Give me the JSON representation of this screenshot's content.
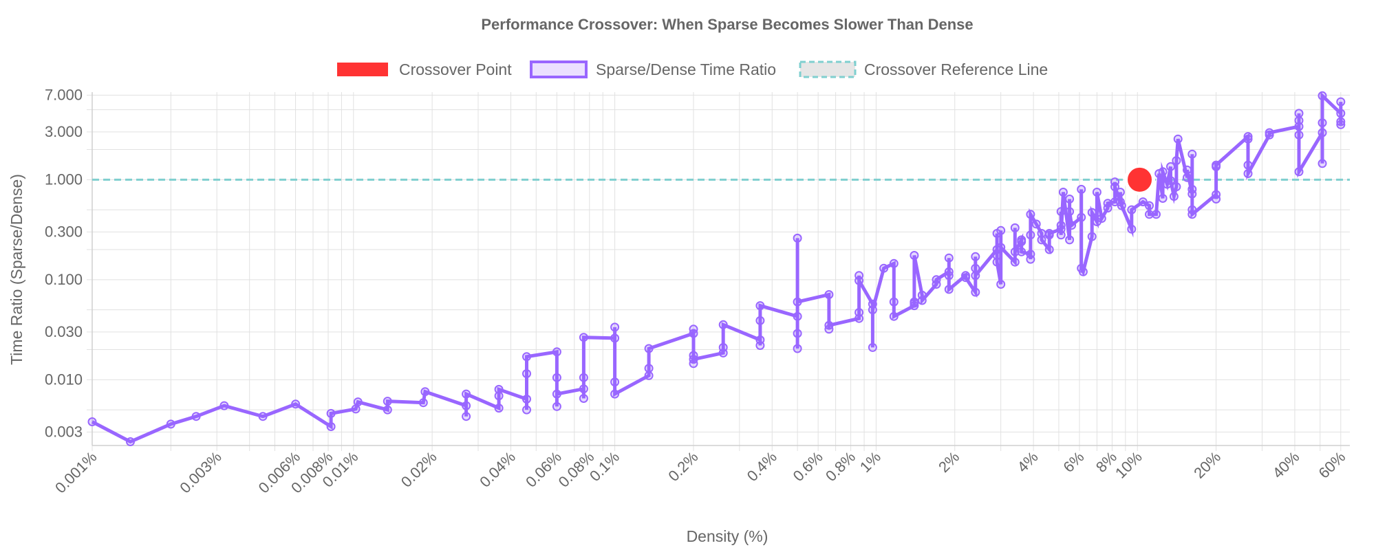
{
  "chart_data": {
    "type": "line",
    "title": "Performance Crossover: When Sparse Becomes Slower Than Dense",
    "xlabel": "Density (%)",
    "ylabel": "Time Ratio (Sparse/Dense)",
    "x_scale": "log",
    "y_scale": "log",
    "xlim": [
      0.001,
      65
    ],
    "ylim": [
      0.0022,
      7.5
    ],
    "grid": true,
    "legend_position": "top",
    "x_ticks": [
      {
        "value": 0.001,
        "label": "0.001%"
      },
      {
        "value": 0.003,
        "label": "0.003%"
      },
      {
        "value": 0.006,
        "label": "0.006%"
      },
      {
        "value": 0.008,
        "label": "0.008%"
      },
      {
        "value": 0.01,
        "label": "0.01%"
      },
      {
        "value": 0.02,
        "label": "0.02%"
      },
      {
        "value": 0.04,
        "label": "0.04%"
      },
      {
        "value": 0.06,
        "label": "0.06%"
      },
      {
        "value": 0.08,
        "label": "0.08%"
      },
      {
        "value": 0.1,
        "label": "0.1%"
      },
      {
        "value": 0.2,
        "label": "0.2%"
      },
      {
        "value": 0.4,
        "label": "0.4%"
      },
      {
        "value": 0.6,
        "label": "0.6%"
      },
      {
        "value": 0.8,
        "label": "0.8%"
      },
      {
        "value": 1,
        "label": "1%"
      },
      {
        "value": 2,
        "label": "2%"
      },
      {
        "value": 4,
        "label": "4%"
      },
      {
        "value": 6,
        "label": "6%"
      },
      {
        "value": 8,
        "label": "8%"
      },
      {
        "value": 10,
        "label": "10%"
      },
      {
        "value": 20,
        "label": "20%"
      },
      {
        "value": 40,
        "label": "40%"
      },
      {
        "value": 60,
        "label": "60%"
      }
    ],
    "y_ticks": [
      {
        "value": 0.003,
        "label": "0.003"
      },
      {
        "value": 0.01,
        "label": "0.010"
      },
      {
        "value": 0.03,
        "label": "0.030"
      },
      {
        "value": 0.1,
        "label": "0.100"
      },
      {
        "value": 0.3,
        "label": "0.300"
      },
      {
        "value": 1,
        "label": "1.000"
      },
      {
        "value": 3,
        "label": "3.000"
      },
      {
        "value": 7,
        "label": "7.000"
      }
    ],
    "legend": [
      {
        "name": "Crossover Point",
        "color": "#ff3333",
        "style": "filled"
      },
      {
        "name": "Sparse/Dense Time Ratio",
        "color": "#9966ff",
        "style": "box"
      },
      {
        "name": "Crossover Reference Line",
        "color": "#7fcfcf",
        "style": "dashed"
      }
    ],
    "series": [
      {
        "name": "Sparse/Dense Time Ratio",
        "color": "#9966ff",
        "points": [
          [
            0.001,
            0.0038
          ],
          [
            0.0014,
            0.0024
          ],
          [
            0.002,
            0.0036
          ],
          [
            0.0025,
            0.0043
          ],
          [
            0.0032,
            0.0055
          ],
          [
            0.0045,
            0.0043
          ],
          [
            0.006,
            0.0057
          ],
          [
            0.0082,
            0.0034
          ],
          [
            0.0082,
            0.0046
          ],
          [
            0.0102,
            0.0051
          ],
          [
            0.0104,
            0.006
          ],
          [
            0.0135,
            0.005
          ],
          [
            0.0135,
            0.0061
          ],
          [
            0.0185,
            0.0059
          ],
          [
            0.0188,
            0.0076
          ],
          [
            0.027,
            0.0055
          ],
          [
            0.027,
            0.0043
          ],
          [
            0.027,
            0.0072
          ],
          [
            0.036,
            0.0052
          ],
          [
            0.036,
            0.0069
          ],
          [
            0.036,
            0.008
          ],
          [
            0.046,
            0.0064
          ],
          [
            0.046,
            0.005
          ],
          [
            0.046,
            0.0115
          ],
          [
            0.046,
            0.017
          ],
          [
            0.06,
            0.019
          ],
          [
            0.06,
            0.0105
          ],
          [
            0.06,
            0.0054
          ],
          [
            0.06,
            0.0072
          ],
          [
            0.076,
            0.0081
          ],
          [
            0.076,
            0.0065
          ],
          [
            0.076,
            0.0105
          ],
          [
            0.076,
            0.0265
          ],
          [
            0.1,
            0.026
          ],
          [
            0.1,
            0.0335
          ],
          [
            0.1,
            0.0095
          ],
          [
            0.1,
            0.0072
          ],
          [
            0.135,
            0.011
          ],
          [
            0.135,
            0.013
          ],
          [
            0.135,
            0.0205
          ],
          [
            0.2,
            0.029
          ],
          [
            0.2,
            0.0145
          ],
          [
            0.2,
            0.0175
          ],
          [
            0.2,
            0.032
          ],
          [
            0.2,
            0.016
          ],
          [
            0.26,
            0.0185
          ],
          [
            0.26,
            0.021
          ],
          [
            0.26,
            0.0355
          ],
          [
            0.36,
            0.025
          ],
          [
            0.36,
            0.022
          ],
          [
            0.36,
            0.039
          ],
          [
            0.36,
            0.055
          ],
          [
            0.5,
            0.043
          ],
          [
            0.5,
            0.0205
          ],
          [
            0.5,
            0.029
          ],
          [
            0.5,
            0.26
          ],
          [
            0.5,
            0.06
          ],
          [
            0.66,
            0.071
          ],
          [
            0.66,
            0.032
          ],
          [
            0.66,
            0.035
          ],
          [
            0.86,
            0.041
          ],
          [
            0.86,
            0.047
          ],
          [
            0.86,
            0.11
          ],
          [
            0.86,
            0.098
          ],
          [
            0.97,
            0.057
          ],
          [
            0.97,
            0.021
          ],
          [
            0.97,
            0.05
          ],
          [
            1.07,
            0.13
          ],
          [
            1.17,
            0.145
          ],
          [
            1.17,
            0.06
          ],
          [
            1.17,
            0.043
          ],
          [
            1.4,
            0.055
          ],
          [
            1.4,
            0.06
          ],
          [
            1.4,
            0.058
          ],
          [
            1.4,
            0.175
          ],
          [
            1.5,
            0.07
          ],
          [
            1.5,
            0.062
          ],
          [
            1.7,
            0.09
          ],
          [
            1.7,
            0.1
          ],
          [
            1.9,
            0.12
          ],
          [
            1.9,
            0.11
          ],
          [
            1.9,
            0.165
          ],
          [
            1.9,
            0.08
          ],
          [
            2.2,
            0.11
          ],
          [
            2.2,
            0.105
          ],
          [
            2.4,
            0.075
          ],
          [
            2.4,
            0.17
          ],
          [
            2.4,
            0.13
          ],
          [
            2.4,
            0.11
          ],
          [
            2.9,
            0.2
          ],
          [
            2.9,
            0.29
          ],
          [
            2.9,
            0.175
          ],
          [
            2.9,
            0.15
          ],
          [
            3.0,
            0.09
          ],
          [
            3.0,
            0.31
          ],
          [
            3.0,
            0.21
          ],
          [
            3.4,
            0.15
          ],
          [
            3.4,
            0.33
          ],
          [
            3.4,
            0.19
          ],
          [
            3.6,
            0.25
          ],
          [
            3.6,
            0.24
          ],
          [
            3.6,
            0.19
          ],
          [
            3.9,
            0.18
          ],
          [
            3.9,
            0.16
          ],
          [
            3.9,
            0.28
          ],
          [
            3.9,
            0.45
          ],
          [
            4.1,
            0.36
          ],
          [
            4.3,
            0.29
          ],
          [
            4.3,
            0.25
          ],
          [
            4.6,
            0.2
          ],
          [
            4.6,
            0.28
          ],
          [
            4.6,
            0.29
          ],
          [
            5.1,
            0.32
          ],
          [
            5.1,
            0.35
          ],
          [
            5.1,
            0.48
          ],
          [
            5.1,
            0.28
          ],
          [
            5.2,
            0.75
          ],
          [
            5.5,
            0.25
          ],
          [
            5.5,
            0.64
          ],
          [
            5.5,
            0.48
          ],
          [
            5.6,
            0.35
          ],
          [
            6.1,
            0.42
          ],
          [
            6.1,
            0.8
          ],
          [
            6.1,
            0.13
          ],
          [
            6.2,
            0.12
          ],
          [
            6.7,
            0.27
          ],
          [
            6.7,
            0.47
          ],
          [
            7.0,
            0.38
          ],
          [
            7.0,
            0.75
          ],
          [
            7.3,
            0.41
          ],
          [
            7.7,
            0.52
          ],
          [
            7.7,
            0.58
          ],
          [
            8.2,
            0.6
          ],
          [
            8.2,
            0.95
          ],
          [
            8.2,
            0.85
          ],
          [
            8.6,
            0.6
          ],
          [
            8.6,
            0.75
          ],
          [
            8.7,
            0.55
          ],
          [
            9.5,
            0.32
          ],
          [
            9.5,
            0.5
          ],
          [
            10.5,
            0.6
          ],
          [
            11.1,
            0.55
          ],
          [
            11.1,
            0.45
          ],
          [
            11.8,
            0.45
          ],
          [
            12.1,
            1.15
          ],
          [
            12.5,
            0.65
          ],
          [
            12.5,
            1.2
          ],
          [
            13,
            0.9
          ],
          [
            13.4,
            1.35
          ],
          [
            13.4,
            0.98
          ],
          [
            13.8,
            0.68
          ],
          [
            14.1,
            0.85
          ],
          [
            14.1,
            1.55
          ],
          [
            14.3,
            2.55
          ],
          [
            15.5,
            1.05
          ],
          [
            15.5,
            1.25
          ],
          [
            16.2,
            0.72
          ],
          [
            16.2,
            0.8
          ],
          [
            16.2,
            1.8
          ],
          [
            16.2,
            0.5
          ],
          [
            16.2,
            0.45
          ],
          [
            20,
            0.71
          ],
          [
            20,
            0.64
          ],
          [
            20,
            1.35
          ],
          [
            20,
            1.4
          ],
          [
            26.5,
            2.7
          ],
          [
            26.5,
            2.55
          ],
          [
            26.5,
            1.4
          ],
          [
            26.5,
            1.15
          ],
          [
            32,
            2.8
          ],
          [
            32,
            2.95
          ],
          [
            41.5,
            3.4
          ],
          [
            41.5,
            3.9
          ],
          [
            41.5,
            4.6
          ],
          [
            41.5,
            2.8
          ],
          [
            41.5,
            1.2
          ],
          [
            51,
            2.95
          ],
          [
            51,
            1.45
          ],
          [
            51,
            3.7
          ],
          [
            51,
            6.9
          ],
          [
            60,
            4.6
          ],
          [
            60,
            3.8
          ],
          [
            60,
            3.55
          ],
          [
            60,
            6.0
          ]
        ]
      }
    ],
    "reference_line": {
      "name": "Crossover Reference Line",
      "y": 1.0,
      "color": "#7fcfcf"
    },
    "crossover_point": {
      "name": "Crossover Point",
      "x": 10.2,
      "y": 1.0,
      "color": "#ff3333"
    }
  }
}
